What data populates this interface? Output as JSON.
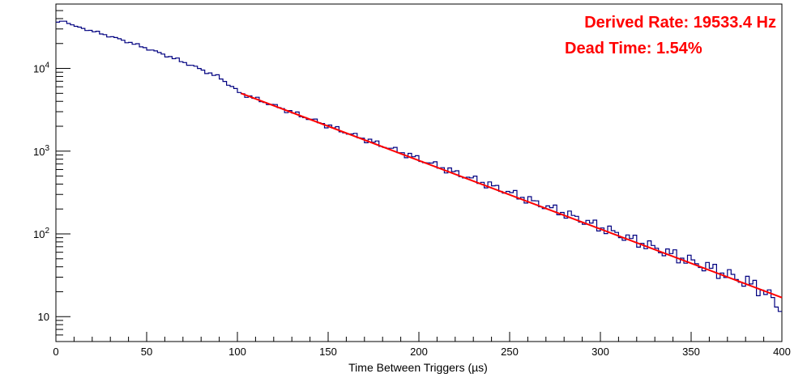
{
  "chart_data": {
    "type": "line",
    "title": "",
    "xlabel": "Time Between Triggers (µs)",
    "ylabel": "",
    "xlim": [
      0,
      400
    ],
    "ylim": [
      5,
      60000
    ],
    "y_scale": "log",
    "grid": false,
    "x_ticks": [
      "0",
      "50",
      "100",
      "150",
      "200",
      "250",
      "300",
      "350",
      "400"
    ],
    "y_ticks": [
      {
        "base": "10",
        "exp": ""
      },
      {
        "base": "10",
        "exp": "2"
      },
      {
        "base": "10",
        "exp": "3"
      },
      {
        "base": "10",
        "exp": "4"
      }
    ],
    "annotations": [
      "Derived Rate: 19533.4 Hz",
      "Dead Time: 1.54%"
    ],
    "series": [
      {
        "style": "histogram-step",
        "color": "#000080",
        "x": [
          0,
          2,
          4,
          6,
          8,
          10,
          20,
          30,
          40,
          50,
          60,
          70,
          80,
          90,
          100,
          120,
          140,
          160,
          180,
          200,
          220,
          240,
          260,
          280,
          300,
          320,
          340,
          360,
          380,
          390,
          400
        ],
        "y": [
          35000,
          37500,
          37000,
          36000,
          33500,
          32000,
          28000,
          24000,
          20500,
          17200,
          14300,
          11800,
          9500,
          7600,
          5100,
          3500,
          2400,
          1650,
          1150,
          790,
          540,
          375,
          255,
          175,
          118,
          80,
          55,
          38,
          26,
          20,
          11
        ]
      },
      {
        "style": "fit-line",
        "color": "#ff0000",
        "x": [
          102,
          400
        ],
        "y": [
          5000,
          17
        ]
      }
    ]
  }
}
